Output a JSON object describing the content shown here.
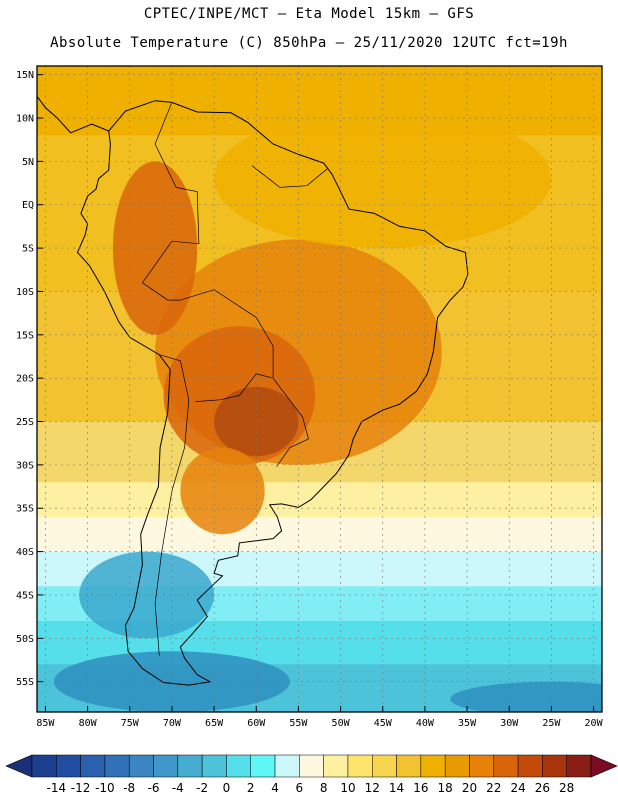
{
  "header": {
    "line1": "CPTEC/INPE/MCT –  Eta Model 15km – GFS",
    "line2": "Absolute Temperature (C) 850hPa – 25/11/2020 12UTC fct=19h"
  },
  "map": {
    "extent": {
      "lon_min": -86,
      "lon_max": -19,
      "lat_min": -58.5,
      "lat_max": 16
    },
    "lat_labels": [
      {
        "lat": 15,
        "label": "15N"
      },
      {
        "lat": 10,
        "label": "10N"
      },
      {
        "lat": 5,
        "label": "5N"
      },
      {
        "lat": 0,
        "label": "EQ"
      },
      {
        "lat": -5,
        "label": "5S"
      },
      {
        "lat": -10,
        "label": "10S"
      },
      {
        "lat": -15,
        "label": "15S"
      },
      {
        "lat": -20,
        "label": "20S"
      },
      {
        "lat": -25,
        "label": "25S"
      },
      {
        "lat": -30,
        "label": "30S"
      },
      {
        "lat": -35,
        "label": "35S"
      },
      {
        "lat": -40,
        "label": "40S"
      },
      {
        "lat": -45,
        "label": "45S"
      },
      {
        "lat": -50,
        "label": "50S"
      },
      {
        "lat": -55,
        "label": "55S"
      }
    ],
    "lon_labels": [
      {
        "lon": -85,
        "label": "85W"
      },
      {
        "lon": -80,
        "label": "80W"
      },
      {
        "lon": -75,
        "label": "75W"
      },
      {
        "lon": -70,
        "label": "70W"
      },
      {
        "lon": -65,
        "label": "65W"
      },
      {
        "lon": -60,
        "label": "60W"
      },
      {
        "lon": -55,
        "label": "55W"
      },
      {
        "lon": -50,
        "label": "50W"
      },
      {
        "lon": -45,
        "label": "45W"
      },
      {
        "lon": -40,
        "label": "40W"
      },
      {
        "lon": -35,
        "label": "35W"
      },
      {
        "lon": -30,
        "label": "30W"
      },
      {
        "lon": -25,
        "label": "25W"
      },
      {
        "lon": -20,
        "label": "20W"
      }
    ],
    "field_bands": [
      {
        "lat_top": 16,
        "lat_bottom": 8,
        "color": "#f0b000"
      },
      {
        "lat_top": 8,
        "lat_bottom": -10,
        "color": "#f2bf20"
      },
      {
        "lat_top": -10,
        "lat_bottom": -25,
        "color": "#f2c231"
      },
      {
        "lat_top": -25,
        "lat_bottom": -32,
        "color": "#f4d76a"
      },
      {
        "lat_top": -32,
        "lat_bottom": -36,
        "color": "#fdf0a0"
      },
      {
        "lat_top": -36,
        "lat_bottom": -40,
        "color": "#fff8e0"
      },
      {
        "lat_top": -40,
        "lat_bottom": -44,
        "color": "#ccf8fc"
      },
      {
        "lat_top": -44,
        "lat_bottom": -48,
        "color": "#80eef4"
      },
      {
        "lat_top": -48,
        "lat_bottom": -53,
        "color": "#55dfea"
      },
      {
        "lat_top": -53,
        "lat_bottom": -58.5,
        "color": "#4cc3d8"
      }
    ],
    "warm_patches": [
      {
        "lon": -55,
        "lat": -17,
        "rlon": 17,
        "rlat": 13,
        "color": "#e6820a"
      },
      {
        "lon": -62,
        "lat": -22,
        "rlon": 9,
        "rlat": 8,
        "color": "#d9650a"
      },
      {
        "lon": -60,
        "lat": -25,
        "rlon": 5,
        "rlat": 4,
        "color": "#b04a10"
      },
      {
        "lon": -72,
        "lat": -5,
        "rlon": 5,
        "rlat": 10,
        "color": "#d9650a"
      },
      {
        "lon": -64,
        "lat": -33,
        "rlon": 5,
        "rlat": 5,
        "color": "#e6820a"
      },
      {
        "lon": -45,
        "lat": 3,
        "rlon": 20,
        "rlat": 8,
        "color": "#f0b000"
      }
    ],
    "cold_patches": [
      {
        "lon": -73,
        "lat": -45,
        "rlon": 8,
        "rlat": 5,
        "color": "#3ba8cc"
      },
      {
        "lon": -70,
        "lat": -55,
        "rlon": 14,
        "rlat": 3.5,
        "color": "#2f8fc0"
      },
      {
        "lon": -25,
        "lat": -57,
        "rlon": 12,
        "rlat": 2,
        "color": "#2f8fc0"
      }
    ]
  },
  "colorbar": {
    "labels": [
      "-14",
      "-12",
      "-10",
      "-8",
      "-6",
      "-4",
      "-2",
      "0",
      "2",
      "4",
      "6",
      "8",
      "10",
      "12",
      "14",
      "16",
      "18",
      "20",
      "22",
      "24",
      "26",
      "28"
    ],
    "colors": [
      "#1d3f8f",
      "#214ea0",
      "#2a60ad",
      "#3172b7",
      "#3a85c2",
      "#3f98c9",
      "#46adcf",
      "#4cc3d8",
      "#55dfea",
      "#5ff6f8",
      "#ccf8fc",
      "#fff8e0",
      "#fdf0a0",
      "#fde56d",
      "#f8d54e",
      "#f2c231",
      "#f0b000",
      "#e89b00",
      "#e6820a",
      "#d9650a",
      "#c34a08",
      "#a8340c",
      "#8a1e14"
    ],
    "low_arrow_color": "#1b2f7a",
    "high_arrow_color": "#7a0c24"
  }
}
